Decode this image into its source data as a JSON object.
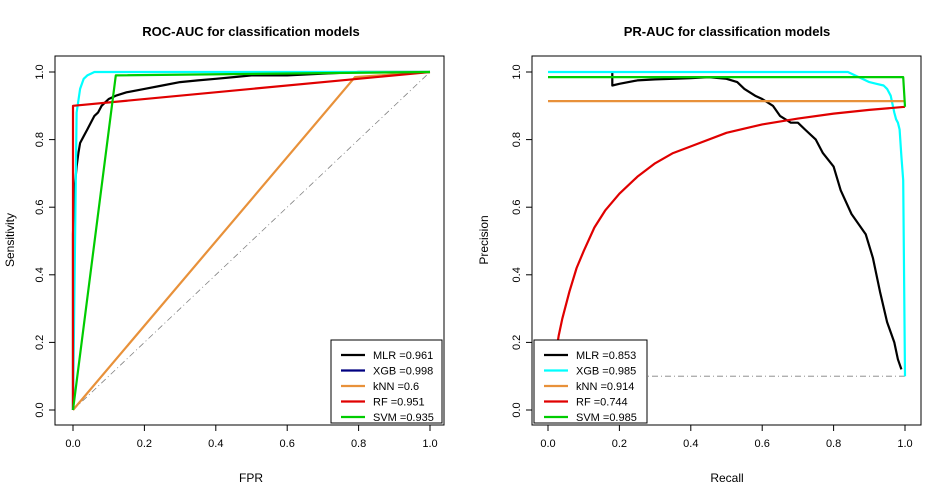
{
  "chart_data": [
    {
      "type": "line",
      "title": "ROC-AUC for classification models",
      "xlabel": "FPR",
      "ylabel": "Sensitivity",
      "xlim": [
        0,
        1
      ],
      "ylim": [
        0,
        1
      ],
      "xticks": [
        "0.0",
        "0.2",
        "0.4",
        "0.6",
        "0.8",
        "1.0"
      ],
      "yticks": [
        "0.0",
        "0.2",
        "0.4",
        "0.6",
        "0.8",
        "1.0"
      ],
      "grid": false,
      "legend_position": "bottom-right",
      "reference_line": {
        "style": "dash-dot",
        "color": "#808080",
        "x": [
          0,
          1
        ],
        "y": [
          0,
          1
        ]
      },
      "series": [
        {
          "name": "MLR",
          "auc_label": "MLR =0.961",
          "color": "#000000",
          "x": [
            0,
            0,
            0.002,
            0.005,
            0.01,
            0.015,
            0.02,
            0.03,
            0.04,
            0.05,
            0.06,
            0.07,
            0.08,
            0.09,
            0.1,
            0.12,
            0.15,
            0.2,
            0.25,
            0.3,
            0.35,
            0.4,
            0.45,
            0.5,
            0.6,
            0.7,
            0.8,
            0.9,
            1.0
          ],
          "y": [
            0,
            0.52,
            0.6,
            0.66,
            0.72,
            0.76,
            0.79,
            0.81,
            0.83,
            0.85,
            0.87,
            0.88,
            0.9,
            0.91,
            0.92,
            0.93,
            0.94,
            0.95,
            0.96,
            0.97,
            0.975,
            0.98,
            0.985,
            0.99,
            0.99,
            0.995,
            1.0,
            1.0,
            1.0
          ]
        },
        {
          "name": "XGB",
          "auc_label": "XGB =0.998",
          "color": "#00ffff",
          "x": [
            0,
            0.01,
            0.02,
            0.03,
            0.04,
            0.05,
            0.06,
            1.0
          ],
          "y": [
            0,
            0.88,
            0.95,
            0.98,
            0.99,
            0.995,
            1.0,
            1.0
          ]
        },
        {
          "name": "kNN",
          "auc_label": "kNN =0.6",
          "color": "#e8913a",
          "x": [
            0,
            0.79,
            1.0
          ],
          "y": [
            0,
            0.985,
            1.0
          ]
        },
        {
          "name": "RF",
          "auc_label": "RF =0.951",
          "color": "#e00000",
          "x": [
            0,
            0,
            1.0
          ],
          "y": [
            0,
            0.9,
            1.0
          ]
        },
        {
          "name": "SVM",
          "auc_label": "SVM =0.935",
          "color": "#00cc00",
          "x": [
            0,
            0.12,
            1.0
          ],
          "y": [
            0,
            0.99,
            1.0
          ]
        }
      ]
    },
    {
      "type": "line",
      "title": "PR-AUC for classification models",
      "xlabel": "Recall",
      "ylabel": "Precision",
      "xlim": [
        0,
        1
      ],
      "ylim": [
        0,
        1
      ],
      "xticks": [
        "0.0",
        "0.2",
        "0.4",
        "0.6",
        "0.8",
        "1.0"
      ],
      "yticks": [
        "0.0",
        "0.2",
        "0.4",
        "0.6",
        "0.8",
        "1.0"
      ],
      "grid": false,
      "legend_position": "bottom-left",
      "reference_line": {
        "style": "dash-dot",
        "color": "#808080",
        "x": [
          0,
          1
        ],
        "y": [
          0.1,
          0.1
        ]
      },
      "series": [
        {
          "name": "MLR",
          "auc_label": "MLR =0.853",
          "color": "#000000",
          "x": [
            0.18,
            0.18,
            0.2,
            0.25,
            0.3,
            0.35,
            0.4,
            0.45,
            0.5,
            0.53,
            0.55,
            0.58,
            0.6,
            0.63,
            0.65,
            0.68,
            0.7,
            0.72,
            0.75,
            0.77,
            0.8,
            0.82,
            0.85,
            0.87,
            0.89,
            0.91,
            0.93,
            0.95,
            0.97,
            0.98,
            0.99
          ],
          "y": [
            1.0,
            0.96,
            0.965,
            0.975,
            0.978,
            0.98,
            0.982,
            0.985,
            0.98,
            0.97,
            0.95,
            0.93,
            0.92,
            0.9,
            0.87,
            0.85,
            0.85,
            0.83,
            0.8,
            0.76,
            0.72,
            0.65,
            0.58,
            0.55,
            0.52,
            0.45,
            0.35,
            0.26,
            0.2,
            0.15,
            0.12
          ]
        },
        {
          "name": "XGB",
          "auc_label": "XGB =0.985",
          "color": "#00ffff",
          "x": [
            0,
            0.84,
            0.86,
            0.88,
            0.9,
            0.92,
            0.94,
            0.95,
            0.96,
            0.97,
            0.975,
            0.98,
            0.985,
            0.99,
            0.995,
            1.0
          ],
          "y": [
            1.0,
            1.0,
            0.99,
            0.98,
            0.97,
            0.965,
            0.96,
            0.95,
            0.93,
            0.88,
            0.86,
            0.85,
            0.83,
            0.75,
            0.68,
            0.1
          ]
        },
        {
          "name": "kNN",
          "auc_label": "kNN =0.914",
          "color": "#e8913a",
          "x": [
            0,
            1.0
          ],
          "y": [
            0.914,
            0.914
          ]
        },
        {
          "name": "RF",
          "auc_label": "RF =0.744",
          "color": "#e00000",
          "x": [
            0.02,
            0.03,
            0.04,
            0.06,
            0.08,
            0.1,
            0.13,
            0.16,
            0.2,
            0.25,
            0.3,
            0.35,
            0.4,
            0.5,
            0.6,
            0.7,
            0.8,
            0.9,
            1.0
          ],
          "y": [
            0.15,
            0.22,
            0.27,
            0.35,
            0.42,
            0.47,
            0.54,
            0.59,
            0.64,
            0.69,
            0.73,
            0.76,
            0.78,
            0.82,
            0.845,
            0.862,
            0.877,
            0.888,
            0.897
          ]
        },
        {
          "name": "SVM",
          "auc_label": "SVM =0.985",
          "color": "#00cc00",
          "x": [
            0,
            0.995,
            1.0
          ],
          "y": [
            0.985,
            0.985,
            0.897
          ]
        }
      ]
    }
  ]
}
